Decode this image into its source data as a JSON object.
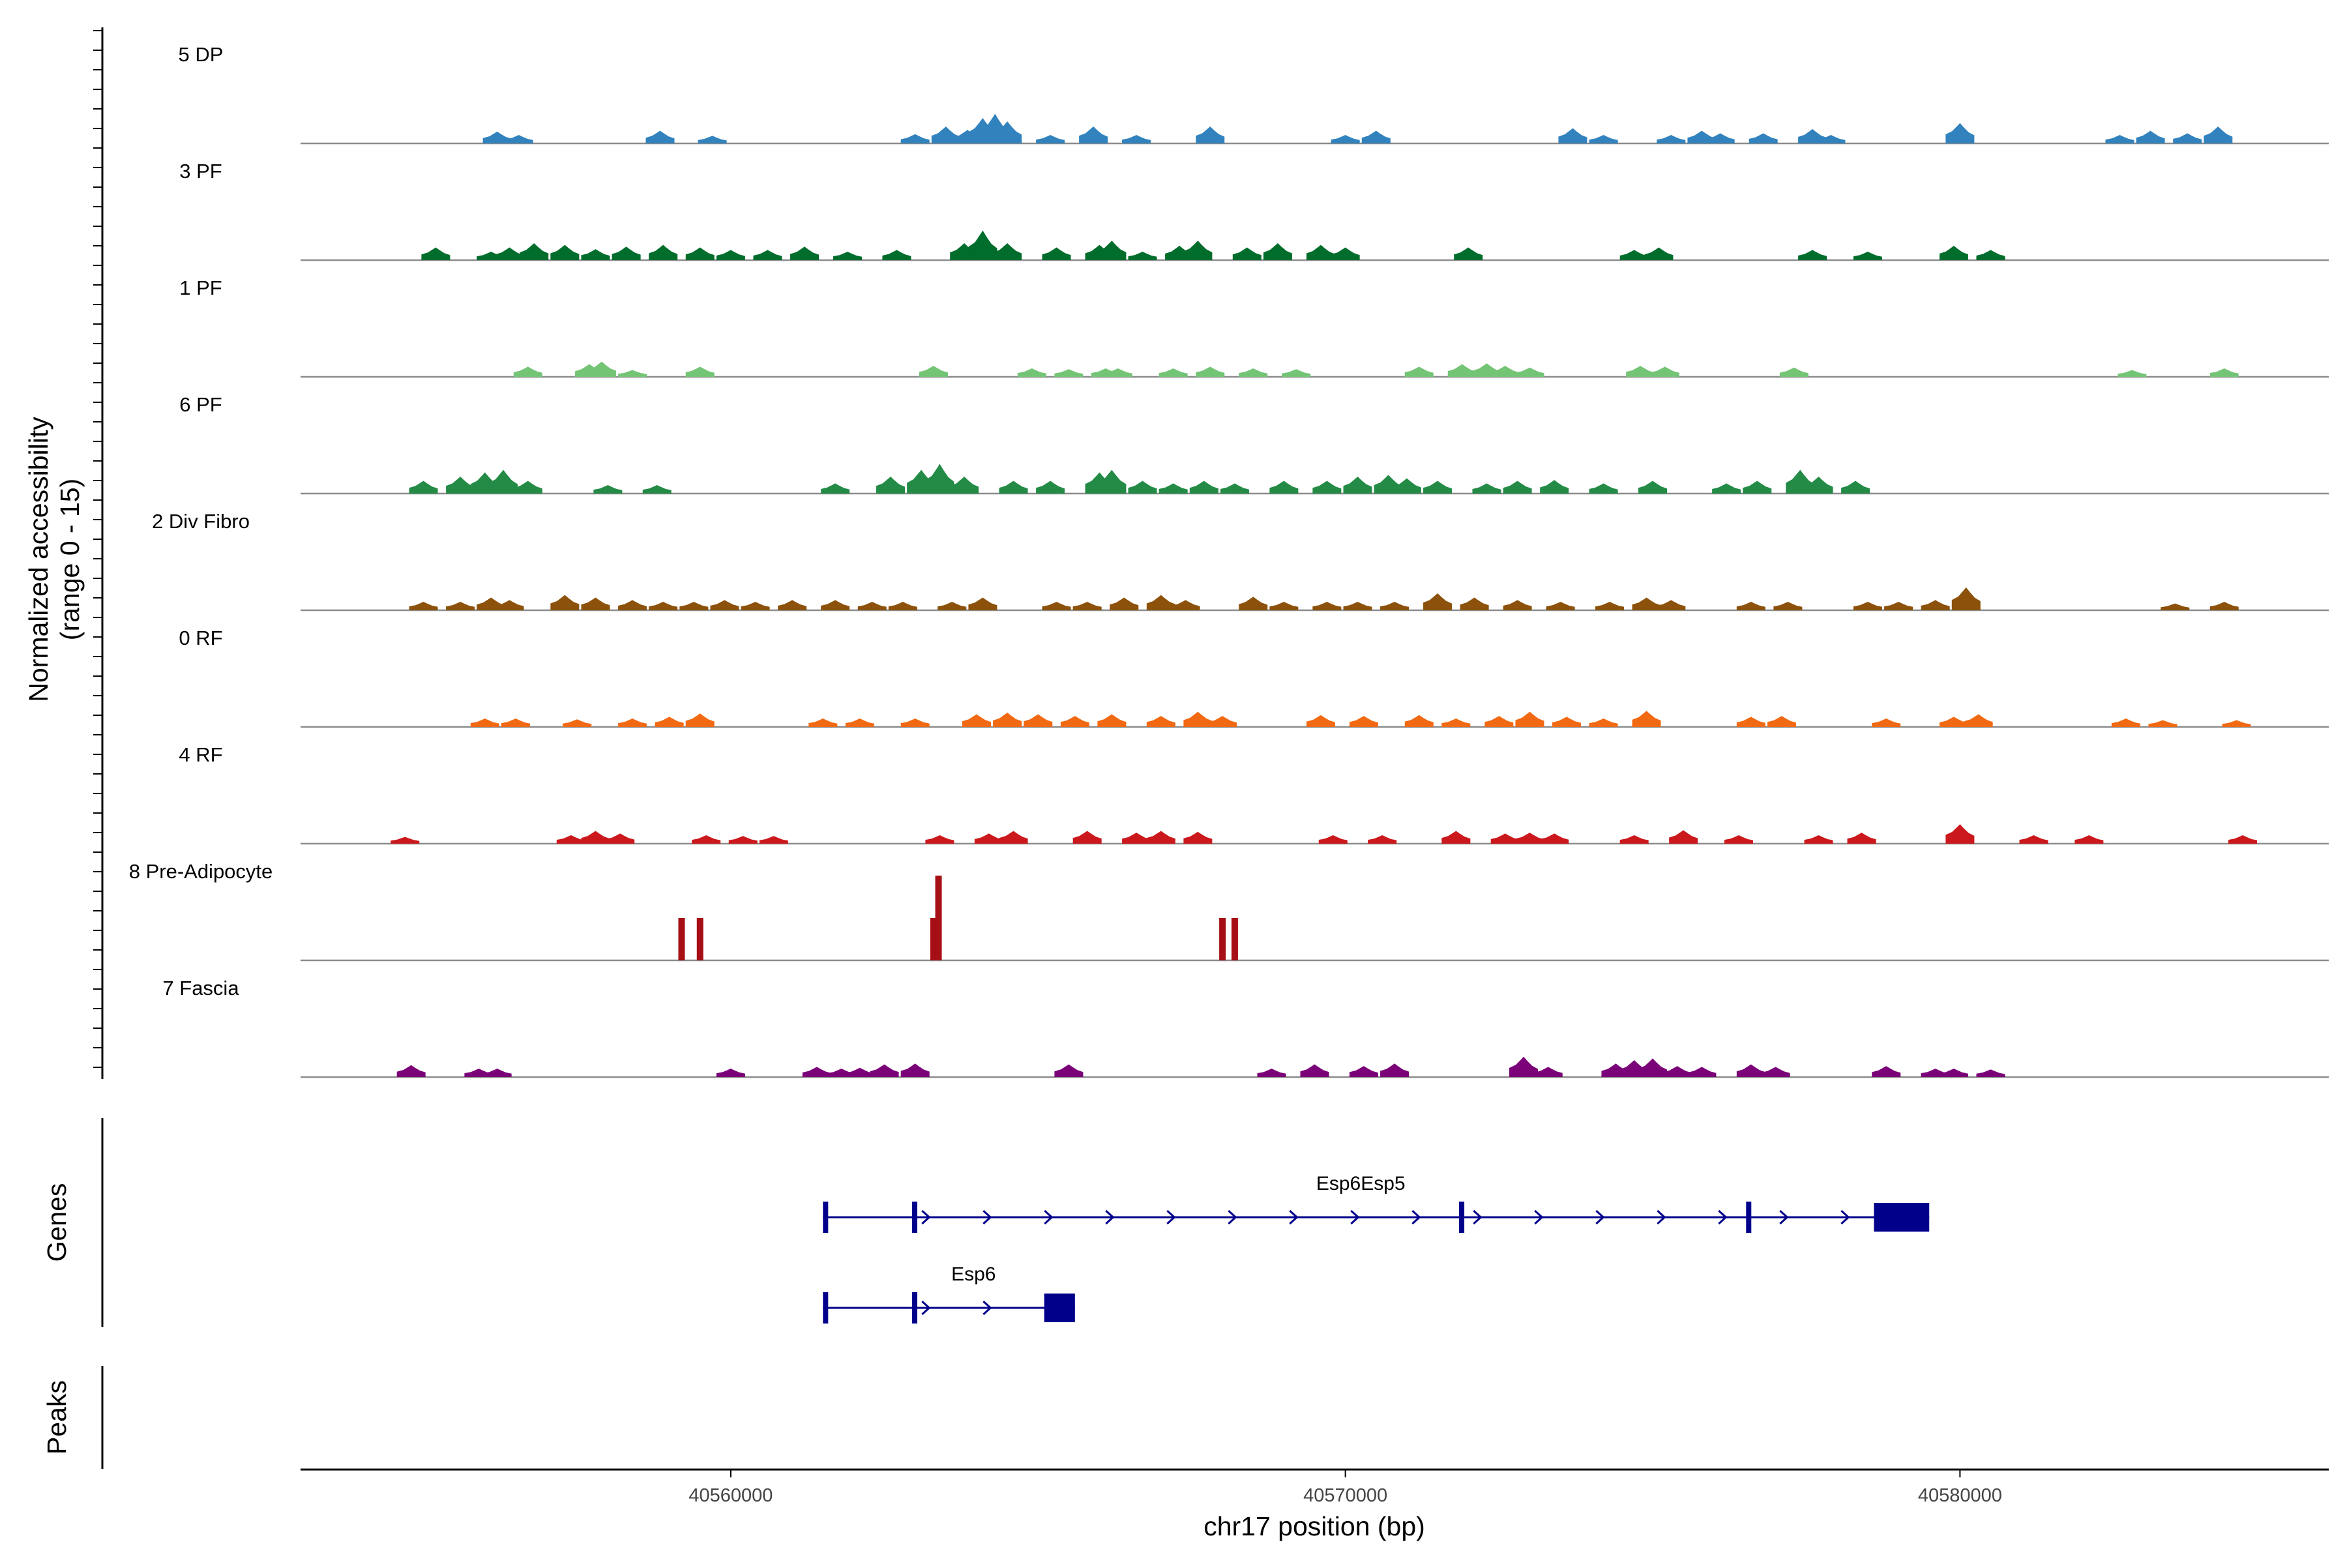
{
  "chart_data": {
    "type": "area",
    "title": "",
    "xlabel": "chr17 position (bp)",
    "ylabel": "Normalized accessibility",
    "ylabel_range": "(range 0 - 15)",
    "xlim": [
      40553000,
      40586000
    ],
    "ylim": [
      0,
      15
    ],
    "x_ticks": [
      40560000,
      40570000,
      40580000
    ],
    "x_tick_labels": [
      "40560000",
      "40570000",
      "40580000"
    ],
    "genes_label": "Genes",
    "peaks_label": "Peaks",
    "tracks": [
      {
        "name": "5 DP",
        "color": "#3182bd",
        "peaks": [
          [
            40556200,
            1.4
          ],
          [
            40556550,
            1
          ],
          [
            40558850,
            1.5
          ],
          [
            40559700,
            0.9
          ],
          [
            40563000,
            1.1
          ],
          [
            40563500,
            2
          ],
          [
            40563850,
            1.6
          ],
          [
            40564100,
            3
          ],
          [
            40564300,
            3.5
          ],
          [
            40564500,
            2.6
          ],
          [
            40565200,
            1
          ],
          [
            40565900,
            2
          ],
          [
            40566600,
            1
          ],
          [
            40567800,
            2
          ],
          [
            40570000,
            1
          ],
          [
            40570500,
            1.5
          ],
          [
            40573700,
            1.8
          ],
          [
            40574200,
            1
          ],
          [
            40575300,
            1
          ],
          [
            40575800,
            1.5
          ],
          [
            40576100,
            1.2
          ],
          [
            40576800,
            1.2
          ],
          [
            40577600,
            1.7
          ],
          [
            40577900,
            1
          ],
          [
            40580000,
            2.4
          ],
          [
            40582600,
            1
          ],
          [
            40583100,
            1.5
          ],
          [
            40583700,
            1.2
          ],
          [
            40584200,
            2
          ]
        ]
      },
      {
        "name": "3 PF",
        "color": "#006d2c",
        "peaks": [
          [
            40555200,
            1.5
          ],
          [
            40556100,
            1
          ],
          [
            40556400,
            1.5
          ],
          [
            40556800,
            2
          ],
          [
            40557300,
            1.8
          ],
          [
            40557800,
            1.3
          ],
          [
            40558300,
            1.6
          ],
          [
            40558900,
            1.8
          ],
          [
            40559500,
            1.5
          ],
          [
            40560000,
            1.2
          ],
          [
            40560600,
            1.2
          ],
          [
            40561200,
            1.6
          ],
          [
            40561900,
            1
          ],
          [
            40562700,
            1.2
          ],
          [
            40563800,
            2
          ],
          [
            40564100,
            3.5
          ],
          [
            40564500,
            2
          ],
          [
            40565300,
            1.5
          ],
          [
            40566000,
            1.8
          ],
          [
            40566200,
            2.3
          ],
          [
            40566700,
            1
          ],
          [
            40567300,
            1.7
          ],
          [
            40567600,
            2.3
          ],
          [
            40568400,
            1.5
          ],
          [
            40568900,
            2
          ],
          [
            40569600,
            1.8
          ],
          [
            40570000,
            1.5
          ],
          [
            40572000,
            1.5
          ],
          [
            40574700,
            1.2
          ],
          [
            40575100,
            1.5
          ],
          [
            40577600,
            1.2
          ],
          [
            40578500,
            1
          ],
          [
            40579900,
            1.7
          ],
          [
            40580500,
            1.2
          ]
        ]
      },
      {
        "name": "1 PF",
        "color": "#74c476",
        "peaks": [
          [
            40556700,
            1.2
          ],
          [
            40557700,
            1.5
          ],
          [
            40557900,
            1.8
          ],
          [
            40558400,
            0.8
          ],
          [
            40559500,
            1.2
          ],
          [
            40563300,
            1.3
          ],
          [
            40564900,
            1
          ],
          [
            40565500,
            0.9
          ],
          [
            40566100,
            1
          ],
          [
            40566300,
            1
          ],
          [
            40567200,
            1
          ],
          [
            40567800,
            1.2
          ],
          [
            40568500,
            1
          ],
          [
            40569200,
            0.9
          ],
          [
            40571200,
            1.2
          ],
          [
            40571900,
            1.5
          ],
          [
            40572300,
            1.6
          ],
          [
            40572600,
            1.3
          ],
          [
            40573000,
            1.1
          ],
          [
            40574800,
            1.3
          ],
          [
            40575200,
            1.2
          ],
          [
            40577300,
            1.1
          ],
          [
            40582800,
            0.8
          ],
          [
            40584300,
            1
          ]
        ]
      },
      {
        "name": "6 PF",
        "color": "#238b45",
        "peaks": [
          [
            40555000,
            1.5
          ],
          [
            40555600,
            2
          ],
          [
            40556000,
            2.5
          ],
          [
            40556300,
            2.8
          ],
          [
            40556700,
            1.5
          ],
          [
            40558000,
            1
          ],
          [
            40558800,
            1
          ],
          [
            40561700,
            1.2
          ],
          [
            40562600,
            2
          ],
          [
            40563100,
            2.8
          ],
          [
            40563400,
            3.5
          ],
          [
            40563800,
            2
          ],
          [
            40564600,
            1.5
          ],
          [
            40565200,
            1.5
          ],
          [
            40566000,
            2.5
          ],
          [
            40566200,
            2.8
          ],
          [
            40566700,
            1.5
          ],
          [
            40567200,
            1.2
          ],
          [
            40567700,
            1.5
          ],
          [
            40568200,
            1.2
          ],
          [
            40569000,
            1.5
          ],
          [
            40569700,
            1.5
          ],
          [
            40570200,
            2
          ],
          [
            40570700,
            2.2
          ],
          [
            40571000,
            1.8
          ],
          [
            40571500,
            1.5
          ],
          [
            40572300,
            1.2
          ],
          [
            40572800,
            1.5
          ],
          [
            40573400,
            1.6
          ],
          [
            40574200,
            1.2
          ],
          [
            40575000,
            1.5
          ],
          [
            40576200,
            1.2
          ],
          [
            40576700,
            1.5
          ],
          [
            40577400,
            2.8
          ],
          [
            40577700,
            2
          ],
          [
            40578300,
            1.5
          ]
        ]
      },
      {
        "name": "2 Div Fibro",
        "color": "#8c510a",
        "peaks": [
          [
            40555000,
            1
          ],
          [
            40555600,
            1
          ],
          [
            40556100,
            1.5
          ],
          [
            40556400,
            1.2
          ],
          [
            40557300,
            1.8
          ],
          [
            40557800,
            1.5
          ],
          [
            40558400,
            1.2
          ],
          [
            40558900,
            1
          ],
          [
            40559400,
            1
          ],
          [
            40559900,
            1.2
          ],
          [
            40560400,
            1
          ],
          [
            40561000,
            1.2
          ],
          [
            40561700,
            1.2
          ],
          [
            40562300,
            1
          ],
          [
            40562800,
            1
          ],
          [
            40563600,
            1
          ],
          [
            40564100,
            1.5
          ],
          [
            40565300,
            1
          ],
          [
            40565800,
            1
          ],
          [
            40566400,
            1.5
          ],
          [
            40567000,
            1.8
          ],
          [
            40567400,
            1.2
          ],
          [
            40568500,
            1.6
          ],
          [
            40569000,
            1
          ],
          [
            40569700,
            1
          ],
          [
            40570200,
            1
          ],
          [
            40570800,
            1
          ],
          [
            40571500,
            2
          ],
          [
            40572100,
            1.5
          ],
          [
            40572800,
            1.2
          ],
          [
            40573500,
            1
          ],
          [
            40574300,
            1
          ],
          [
            40574900,
            1.5
          ],
          [
            40575300,
            1.2
          ],
          [
            40576600,
            1
          ],
          [
            40577200,
            1
          ],
          [
            40578500,
            1
          ],
          [
            40579000,
            1
          ],
          [
            40579600,
            1.2
          ],
          [
            40580100,
            2.7
          ],
          [
            40583500,
            0.8
          ],
          [
            40584300,
            1
          ]
        ]
      },
      {
        "name": "0 RF",
        "color": "#f16913",
        "peaks": [
          [
            40556000,
            1
          ],
          [
            40556500,
            1
          ],
          [
            40557500,
            0.9
          ],
          [
            40558400,
            1
          ],
          [
            40559000,
            1.2
          ],
          [
            40559500,
            1.6
          ],
          [
            40561500,
            1
          ],
          [
            40562100,
            1
          ],
          [
            40563000,
            1
          ],
          [
            40564000,
            1.5
          ],
          [
            40564500,
            1.7
          ],
          [
            40565000,
            1.5
          ],
          [
            40565600,
            1.3
          ],
          [
            40566200,
            1.5
          ],
          [
            40567000,
            1.3
          ],
          [
            40567600,
            1.8
          ],
          [
            40568000,
            1.3
          ],
          [
            40569600,
            1.4
          ],
          [
            40570300,
            1.3
          ],
          [
            40571200,
            1.4
          ],
          [
            40571800,
            1
          ],
          [
            40572500,
            1.3
          ],
          [
            40573000,
            1.8
          ],
          [
            40573600,
            1.2
          ],
          [
            40574200,
            1
          ],
          [
            40574900,
            1.9
          ],
          [
            40576600,
            1.2
          ],
          [
            40577100,
            1.3
          ],
          [
            40578800,
            1
          ],
          [
            40579900,
            1.2
          ],
          [
            40580300,
            1.5
          ],
          [
            40582700,
            1
          ],
          [
            40583300,
            0.8
          ],
          [
            40584500,
            0.8
          ]
        ]
      },
      {
        "name": "4 RF",
        "color": "#cb181d",
        "peaks": [
          [
            40554700,
            0.8
          ],
          [
            40557400,
            1
          ],
          [
            40557800,
            1.5
          ],
          [
            40558200,
            1.2
          ],
          [
            40559600,
            1
          ],
          [
            40560200,
            0.9
          ],
          [
            40560700,
            0.9
          ],
          [
            40563400,
            1
          ],
          [
            40564200,
            1.2
          ],
          [
            40564600,
            1.5
          ],
          [
            40565800,
            1.5
          ],
          [
            40566600,
            1.3
          ],
          [
            40567000,
            1.5
          ],
          [
            40567600,
            1.4
          ],
          [
            40569800,
            1
          ],
          [
            40570600,
            1
          ],
          [
            40571800,
            1.5
          ],
          [
            40572600,
            1.2
          ],
          [
            40573000,
            1.3
          ],
          [
            40573400,
            1.2
          ],
          [
            40574700,
            1
          ],
          [
            40575500,
            1.6
          ],
          [
            40576400,
            1
          ],
          [
            40577700,
            1
          ],
          [
            40578400,
            1.3
          ],
          [
            40580000,
            2.3
          ],
          [
            40581200,
            1
          ],
          [
            40582100,
            1
          ],
          [
            40584600,
            1
          ]
        ]
      },
      {
        "name": "8 Pre-Adipocyte",
        "color": "#a50f15",
        "peaks": [
          [
            40559200,
            5
          ],
          [
            40559500,
            5
          ],
          [
            40563300,
            5
          ],
          [
            40563380,
            10
          ],
          [
            40568000,
            5
          ],
          [
            40568200,
            5
          ]
        ]
      },
      {
        "name": "7 Fascia",
        "color": "#7a0177",
        "peaks": [
          [
            40554800,
            1.4
          ],
          [
            40555900,
            1
          ],
          [
            40556200,
            1
          ],
          [
            40560000,
            1
          ],
          [
            40561400,
            1.2
          ],
          [
            40561800,
            1
          ],
          [
            40562100,
            1.1
          ],
          [
            40562500,
            1.5
          ],
          [
            40563000,
            1.6
          ],
          [
            40565500,
            1.5
          ],
          [
            40568800,
            1
          ],
          [
            40569500,
            1.5
          ],
          [
            40570300,
            1.3
          ],
          [
            40570800,
            1.6
          ],
          [
            40572900,
            2.4
          ],
          [
            40573300,
            1.2
          ],
          [
            40574400,
            1.6
          ],
          [
            40574700,
            2
          ],
          [
            40575000,
            2.2
          ],
          [
            40575400,
            1.3
          ],
          [
            40575800,
            1.2
          ],
          [
            40576600,
            1.5
          ],
          [
            40577000,
            1.2
          ],
          [
            40578800,
            1.3
          ],
          [
            40579600,
            1
          ],
          [
            40579900,
            1
          ],
          [
            40580500,
            0.9
          ]
        ]
      }
    ],
    "genes": [
      {
        "name": "Esp6Esp5",
        "color": "#00008b",
        "start": 40561500,
        "end": 40579500,
        "exons": [
          [
            40561500,
            40561580
          ],
          [
            40562950,
            40563030
          ],
          [
            40571850,
            40571930
          ],
          [
            40576520,
            40576600
          ],
          [
            40578600,
            40579500
          ]
        ]
      },
      {
        "name": "Esp6",
        "color": "#00008b",
        "start": 40561500,
        "end": 40565600,
        "exons": [
          [
            40561500,
            40561580
          ],
          [
            40562950,
            40563030
          ],
          [
            40565100,
            40565600
          ]
        ]
      }
    ]
  }
}
